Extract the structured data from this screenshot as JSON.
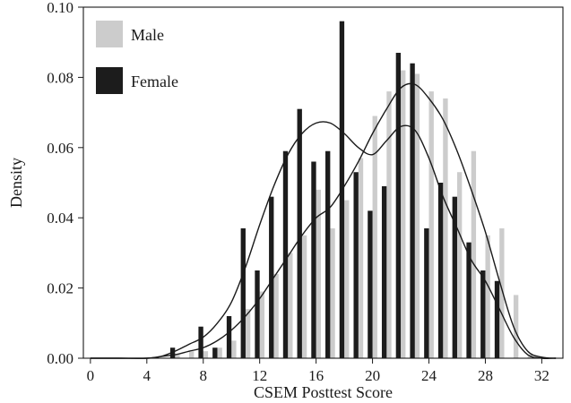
{
  "chart_data": {
    "type": "bar",
    "title": "",
    "xlabel": "CSEM Posttest Score",
    "ylabel": "Density",
    "xlim": [
      -0.5,
      33.5
    ],
    "ylim": [
      0,
      0.1
    ],
    "x_ticks": [
      0,
      4,
      8,
      12,
      16,
      20,
      24,
      28,
      32
    ],
    "y_ticks": [
      0.0,
      0.02,
      0.04,
      0.06,
      0.08,
      0.1
    ],
    "y_tick_labels": [
      "0.00",
      "0.02",
      "0.04",
      "0.06",
      "0.08",
      "0.10"
    ],
    "grid": false,
    "legend_position": "top-left",
    "x": [
      6,
      7,
      8,
      9,
      10,
      11,
      12,
      13,
      14,
      15,
      16,
      17,
      18,
      19,
      20,
      21,
      22,
      23,
      24,
      25,
      26,
      27,
      28,
      29,
      30,
      31
    ],
    "series": [
      {
        "name": "Male",
        "color": "#cccccc",
        "values": [
          0.001,
          0.002,
          0.002,
          0.003,
          0.005,
          0.014,
          0.019,
          0.024,
          0.03,
          0.035,
          0.048,
          0.037,
          0.045,
          0.057,
          0.069,
          0.076,
          0.082,
          0.081,
          0.076,
          0.074,
          0.053,
          0.059,
          0.035,
          0.037,
          0.018,
          0.001
        ]
      },
      {
        "name": "Female",
        "color": "#1c1c1c",
        "values": [
          0.003,
          0.0,
          0.009,
          0.003,
          0.012,
          0.037,
          0.025,
          0.046,
          0.059,
          0.071,
          0.056,
          0.059,
          0.096,
          0.053,
          0.042,
          0.049,
          0.087,
          0.084,
          0.037,
          0.05,
          0.046,
          0.033,
          0.025,
          0.022,
          0.0,
          0.0
        ]
      }
    ],
    "density_curves": [
      {
        "series": "Male",
        "x": [
          0,
          2,
          4,
          5,
          6,
          7,
          8,
          9,
          10,
          11,
          12,
          13,
          14,
          15,
          16,
          17,
          18,
          19,
          20,
          21,
          22,
          23,
          24,
          25,
          26,
          27,
          28,
          29,
          30,
          31,
          32,
          33
        ],
        "y": [
          0.0,
          0.0,
          0.0,
          0.0005,
          0.001,
          0.002,
          0.003,
          0.005,
          0.008,
          0.012,
          0.017,
          0.023,
          0.029,
          0.035,
          0.04,
          0.043,
          0.049,
          0.056,
          0.064,
          0.071,
          0.077,
          0.078,
          0.074,
          0.068,
          0.059,
          0.048,
          0.036,
          0.022,
          0.009,
          0.002,
          0.0003,
          0.0
        ]
      },
      {
        "series": "Female",
        "x": [
          0,
          2,
          4,
          5,
          6,
          7,
          8,
          9,
          10,
          11,
          12,
          13,
          14,
          15,
          16,
          17,
          18,
          19,
          20,
          21,
          22,
          23,
          24,
          25,
          26,
          27,
          28,
          29,
          30,
          31,
          32,
          33
        ],
        "y": [
          0.0,
          0.0,
          0.0,
          0.0005,
          0.002,
          0.004,
          0.006,
          0.01,
          0.016,
          0.026,
          0.038,
          0.049,
          0.058,
          0.064,
          0.067,
          0.067,
          0.064,
          0.06,
          0.058,
          0.062,
          0.066,
          0.065,
          0.057,
          0.046,
          0.037,
          0.028,
          0.022,
          0.014,
          0.006,
          0.001,
          0.0,
          0.0
        ]
      }
    ]
  }
}
